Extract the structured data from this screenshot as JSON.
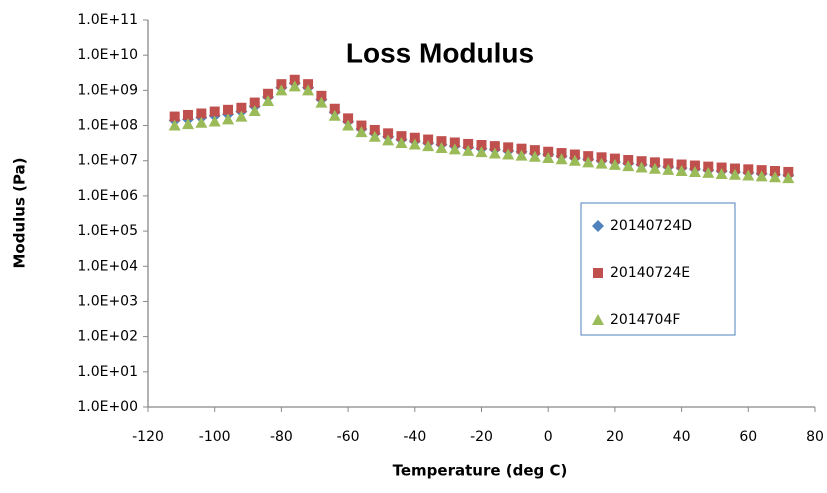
{
  "chart_data": {
    "type": "scatter",
    "title": "Loss Modulus",
    "x_label": "Temperature (deg C)",
    "y_label": "Modulus (Pa)",
    "ylog": true,
    "xlim": [
      -120,
      80
    ],
    "xticks": [
      -120,
      -100,
      -80,
      -60,
      -40,
      -20,
      0,
      20,
      40,
      60,
      80
    ],
    "ylim": [
      1,
      100000000000
    ],
    "yticks": [
      {
        "value": 1,
        "label": "1.0E+00"
      },
      {
        "value": 10,
        "label": "1.0E+01"
      },
      {
        "value": 100,
        "label": "1.0E+02"
      },
      {
        "value": 1000,
        "label": "1.0E+03"
      },
      {
        "value": 10000,
        "label": "1.0E+04"
      },
      {
        "value": 100000,
        "label": "1.0E+05"
      },
      {
        "value": 1000000,
        "label": "1.0E+06"
      },
      {
        "value": 10000000,
        "label": "1.0E+07"
      },
      {
        "value": 100000000,
        "label": "1.0E+08"
      },
      {
        "value": 1000000000,
        "label": "1.0E+09"
      },
      {
        "value": 10000000000,
        "label": "1.0E+10"
      },
      {
        "value": 100000000000,
        "label": "1.0E+11"
      }
    ],
    "x": [
      -112,
      -108,
      -104,
      -100,
      -96,
      -92,
      -88,
      -84,
      -80,
      -76,
      -72,
      -68,
      -64,
      -60,
      -56,
      -52,
      -48,
      -44,
      -40,
      -36,
      -32,
      -28,
      -24,
      -20,
      -16,
      -12,
      -8,
      -4,
      0,
      4,
      8,
      12,
      16,
      20,
      24,
      28,
      32,
      36,
      40,
      44,
      48,
      52,
      56,
      60,
      64,
      68,
      72
    ],
    "series": [
      {
        "name": "20140724D",
        "color": "#4f81bd",
        "marker": "diamond",
        "values": [
          140000000.0,
          150000000.0,
          170000000.0,
          190000000.0,
          210000000.0,
          250000000.0,
          350000000.0,
          650000000.0,
          1200000000.0,
          1600000000.0,
          1200000000.0,
          550000000.0,
          240000000.0,
          130000000.0,
          80000000.0,
          60000000.0,
          48000000.0,
          40000000.0,
          36000000.0,
          32000000.0,
          29000000.0,
          26000000.0,
          24000000.0,
          22000000.0,
          21000000.0,
          19000000.0,
          18000000.0,
          16000000.0,
          15000000.0,
          13500000.0,
          12000000.0,
          11000000.0,
          10000000.0,
          9200000.0,
          8400000.0,
          7800000.0,
          7200000.0,
          6700000.0,
          6200000.0,
          5800000.0,
          5400000.0,
          5100000.0,
          4800000.0,
          4600000.0,
          4300000.0,
          4100000.0,
          3900000.0
        ]
      },
      {
        "name": "20140724E",
        "color": "#c0504d",
        "marker": "square",
        "values": [
          180000000.0,
          200000000.0,
          220000000.0,
          250000000.0,
          280000000.0,
          320000000.0,
          450000000.0,
          800000000.0,
          1500000000.0,
          2000000000.0,
          1500000000.0,
          700000000.0,
          300000000.0,
          160000000.0,
          100000000.0,
          75000000.0,
          60000000.0,
          50000000.0,
          45000000.0,
          40000000.0,
          36000000.0,
          33000000.0,
          30000000.0,
          28000000.0,
          26000000.0,
          24000000.0,
          22000000.0,
          20000000.0,
          18000000.0,
          16500000.0,
          15000000.0,
          13500000.0,
          12500000.0,
          11500000.0,
          10500000.0,
          9700000.0,
          9000000.0,
          8400000.0,
          7800000.0,
          7300000.0,
          6800000.0,
          6400000.0,
          6000000.0,
          5700000.0,
          5400000.0,
          5100000.0,
          4800000.0
        ]
      },
      {
        "name": "2014704F",
        "color": "#9bbb59",
        "marker": "triangle",
        "values": [
          100000000.0,
          110000000.0,
          120000000.0,
          130000000.0,
          150000000.0,
          180000000.0,
          260000000.0,
          500000000.0,
          1000000000.0,
          1300000000.0,
          1000000000.0,
          450000000.0,
          190000000.0,
          100000000.0,
          65000000.0,
          48000000.0,
          38000000.0,
          32000000.0,
          29000000.0,
          26000000.0,
          23000000.0,
          21000000.0,
          19000000.0,
          17500000.0,
          16000000.0,
          15000000.0,
          14000000.0,
          13000000.0,
          12000000.0,
          11000000.0,
          10000000.0,
          9000000.0,
          8300000.0,
          7600000.0,
          7000000.0,
          6400000.0,
          5900000.0,
          5500000.0,
          5100000.0,
          4800000.0,
          4500000.0,
          4200000.0,
          4000000.0,
          3800000.0,
          3600000.0,
          3400000.0,
          3200000.0
        ]
      }
    ]
  }
}
